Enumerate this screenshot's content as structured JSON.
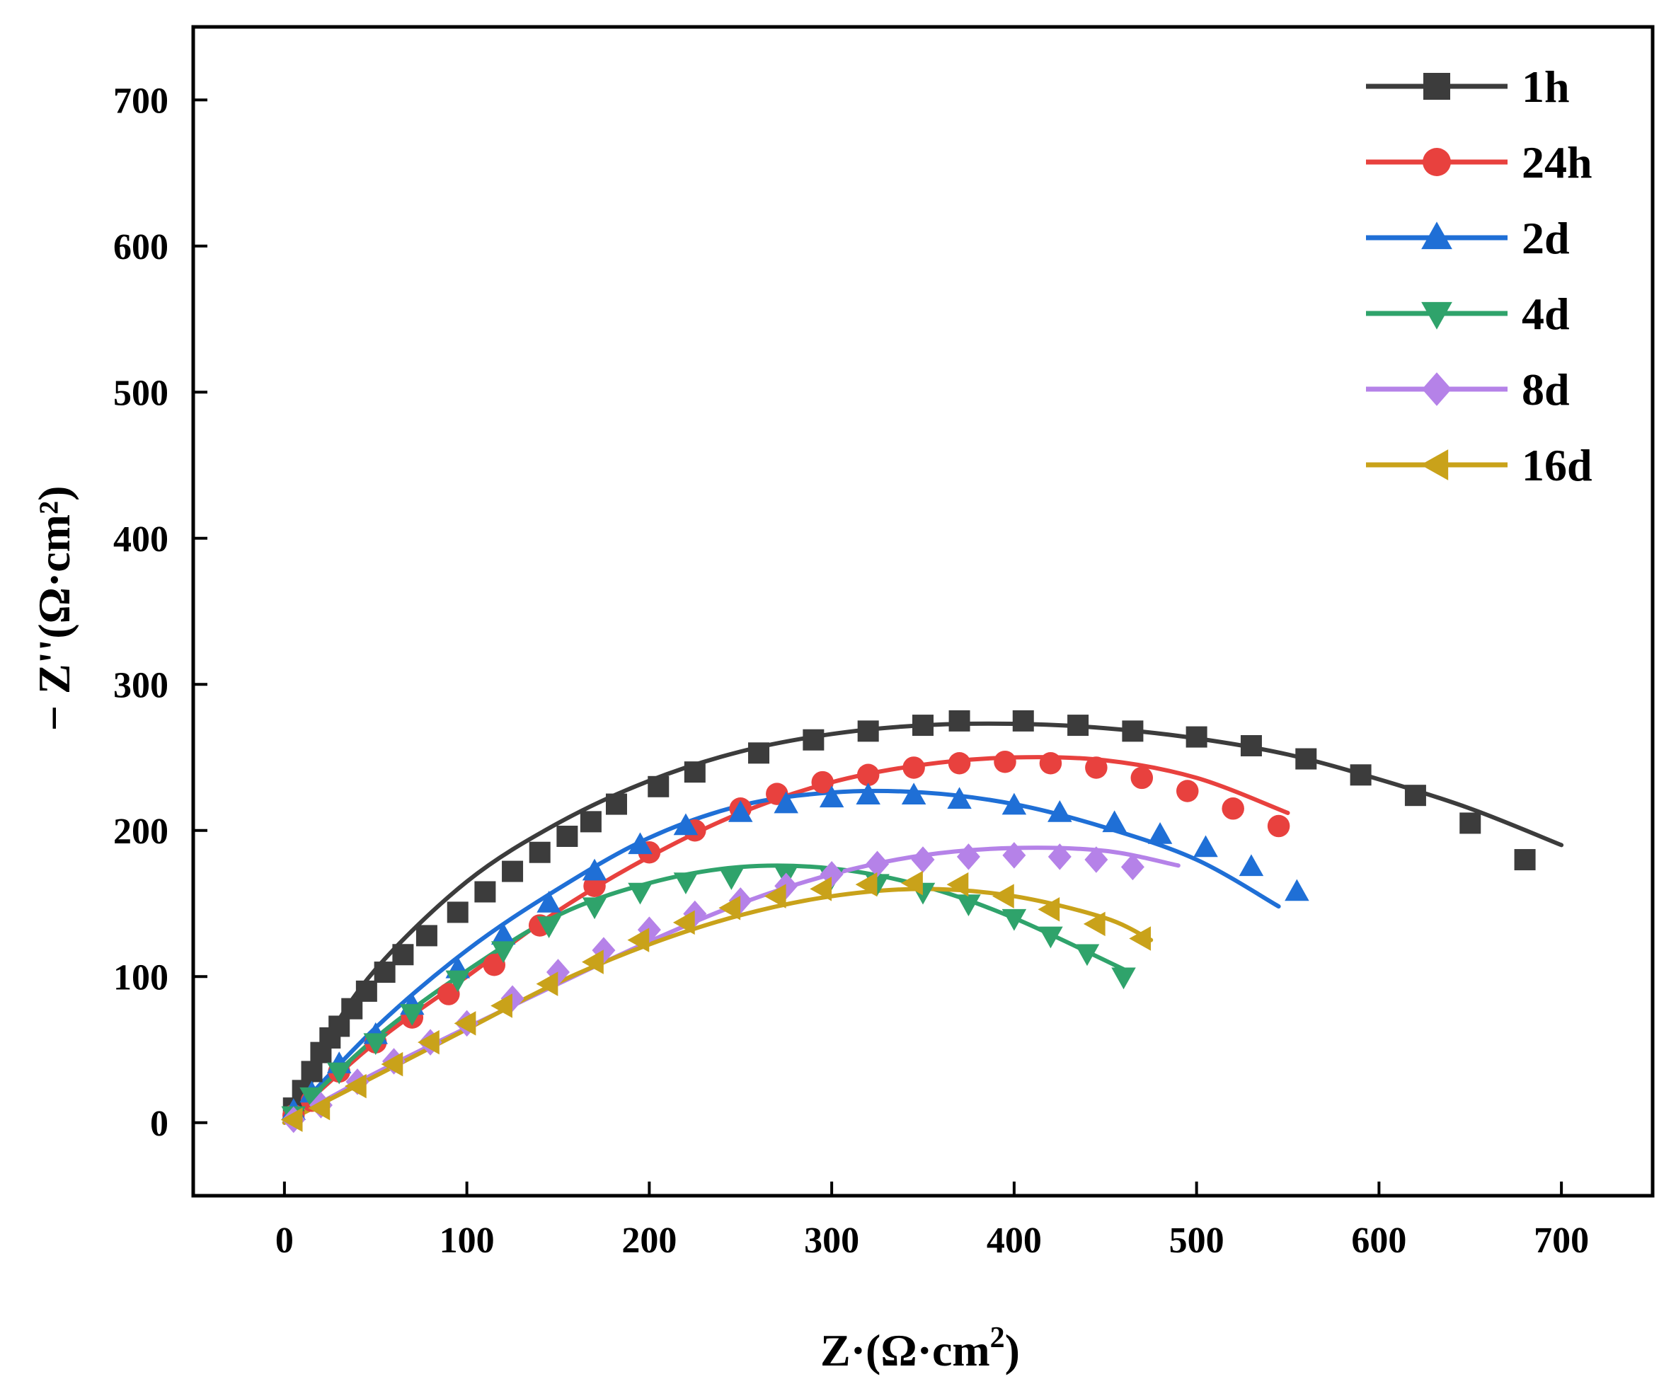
{
  "chart_data": {
    "type": "scatter",
    "title": "",
    "xlabel": "Z·(Ω·cm",
    "xlabel_sup": "2",
    "xlabel_close": ")",
    "ylabel": "− Z''(Ω·cm²)",
    "xlim": [
      -50,
      750
    ],
    "ylim": [
      -50,
      750
    ],
    "xticks": [
      0,
      100,
      200,
      300,
      400,
      500,
      600,
      700
    ],
    "yticks": [
      0,
      100,
      200,
      300,
      400,
      500,
      600,
      700
    ],
    "grid": false,
    "legend_position": "top-right",
    "series": [
      {
        "name": "1h",
        "color": "#3c3c3c",
        "marker": "square",
        "points": [
          [
            5,
            10
          ],
          [
            10,
            22
          ],
          [
            15,
            35
          ],
          [
            20,
            48
          ],
          [
            25,
            58
          ],
          [
            30,
            66
          ],
          [
            37,
            78
          ],
          [
            45,
            90
          ],
          [
            55,
            103
          ],
          [
            65,
            115
          ],
          [
            78,
            128
          ],
          [
            95,
            144
          ],
          [
            110,
            158
          ],
          [
            125,
            172
          ],
          [
            140,
            185
          ],
          [
            155,
            196
          ],
          [
            168,
            206
          ],
          [
            182,
            218
          ],
          [
            205,
            230
          ],
          [
            225,
            240
          ],
          [
            260,
            253
          ],
          [
            290,
            262
          ],
          [
            320,
            268
          ],
          [
            350,
            272
          ],
          [
            370,
            275
          ],
          [
            405,
            275
          ],
          [
            435,
            272
          ],
          [
            465,
            268
          ],
          [
            500,
            264
          ],
          [
            530,
            258
          ],
          [
            560,
            249
          ],
          [
            590,
            238
          ],
          [
            620,
            224
          ],
          [
            650,
            205
          ],
          [
            680,
            180
          ]
        ],
        "fit": [
          [
            0,
            0
          ],
          [
            20,
            50
          ],
          [
            50,
            105
          ],
          [
            100,
            165
          ],
          [
            150,
            205
          ],
          [
            200,
            234
          ],
          [
            250,
            254
          ],
          [
            300,
            266
          ],
          [
            350,
            272
          ],
          [
            400,
            273
          ],
          [
            450,
            270
          ],
          [
            500,
            263
          ],
          [
            550,
            252
          ],
          [
            600,
            235
          ],
          [
            650,
            215
          ],
          [
            700,
            190
          ]
        ]
      },
      {
        "name": "24h",
        "color": "#e8413e",
        "marker": "circle",
        "points": [
          [
            5,
            5
          ],
          [
            15,
            15
          ],
          [
            30,
            35
          ],
          [
            50,
            55
          ],
          [
            70,
            72
          ],
          [
            90,
            88
          ],
          [
            115,
            108
          ],
          [
            140,
            135
          ],
          [
            170,
            162
          ],
          [
            200,
            185
          ],
          [
            225,
            200
          ],
          [
            250,
            215
          ],
          [
            270,
            225
          ],
          [
            295,
            233
          ],
          [
            320,
            238
          ],
          [
            345,
            243
          ],
          [
            370,
            246
          ],
          [
            395,
            247
          ],
          [
            420,
            246
          ],
          [
            445,
            243
          ],
          [
            470,
            236
          ],
          [
            495,
            227
          ],
          [
            520,
            215
          ],
          [
            545,
            203
          ]
        ],
        "fit": [
          [
            0,
            0
          ],
          [
            50,
            55
          ],
          [
            100,
            100
          ],
          [
            150,
            145
          ],
          [
            200,
            182
          ],
          [
            250,
            212
          ],
          [
            300,
            233
          ],
          [
            350,
            245
          ],
          [
            400,
            250
          ],
          [
            450,
            248
          ],
          [
            500,
            236
          ],
          [
            550,
            212
          ]
        ]
      },
      {
        "name": "2d",
        "color": "#1f6fd6",
        "marker": "triangle-up",
        "points": [
          [
            5,
            8
          ],
          [
            15,
            20
          ],
          [
            30,
            40
          ],
          [
            50,
            60
          ],
          [
            70,
            80
          ],
          [
            95,
            105
          ],
          [
            120,
            128
          ],
          [
            145,
            150
          ],
          [
            170,
            172
          ],
          [
            195,
            190
          ],
          [
            220,
            203
          ],
          [
            250,
            212
          ],
          [
            275,
            218
          ],
          [
            300,
            222
          ],
          [
            320,
            224
          ],
          [
            345,
            224
          ],
          [
            370,
            221
          ],
          [
            400,
            217
          ],
          [
            425,
            212
          ],
          [
            455,
            205
          ],
          [
            480,
            197
          ],
          [
            505,
            188
          ],
          [
            530,
            175
          ],
          [
            555,
            158
          ]
        ],
        "fit": [
          [
            0,
            0
          ],
          [
            50,
            65
          ],
          [
            100,
            118
          ],
          [
            150,
            160
          ],
          [
            200,
            195
          ],
          [
            250,
            217
          ],
          [
            300,
            226
          ],
          [
            350,
            226
          ],
          [
            400,
            218
          ],
          [
            450,
            202
          ],
          [
            500,
            180
          ],
          [
            545,
            148
          ]
        ]
      },
      {
        "name": "4d",
        "color": "#2fa36b",
        "marker": "triangle-down",
        "points": [
          [
            5,
            5
          ],
          [
            15,
            18
          ],
          [
            30,
            35
          ],
          [
            50,
            55
          ],
          [
            70,
            75
          ],
          [
            95,
            98
          ],
          [
            120,
            118
          ],
          [
            145,
            135
          ],
          [
            170,
            148
          ],
          [
            195,
            158
          ],
          [
            220,
            165
          ],
          [
            245,
            168
          ],
          [
            275,
            170
          ],
          [
            300,
            168
          ],
          [
            325,
            164
          ],
          [
            350,
            158
          ],
          [
            375,
            150
          ],
          [
            400,
            140
          ],
          [
            420,
            128
          ],
          [
            440,
            116
          ],
          [
            460,
            100
          ]
        ],
        "fit": [
          [
            0,
            0
          ],
          [
            50,
            58
          ],
          [
            100,
            104
          ],
          [
            150,
            142
          ],
          [
            200,
            164
          ],
          [
            250,
            175
          ],
          [
            300,
            174
          ],
          [
            350,
            162
          ],
          [
            400,
            140
          ],
          [
            460,
            105
          ]
        ]
      },
      {
        "name": "8d",
        "color": "#b582e8",
        "marker": "diamond",
        "points": [
          [
            5,
            2
          ],
          [
            20,
            12
          ],
          [
            40,
            28
          ],
          [
            60,
            42
          ],
          [
            80,
            55
          ],
          [
            100,
            68
          ],
          [
            125,
            85
          ],
          [
            150,
            103
          ],
          [
            175,
            118
          ],
          [
            200,
            132
          ],
          [
            225,
            143
          ],
          [
            250,
            152
          ],
          [
            275,
            162
          ],
          [
            300,
            170
          ],
          [
            325,
            177
          ],
          [
            350,
            180
          ],
          [
            375,
            182
          ],
          [
            400,
            183
          ],
          [
            425,
            182
          ],
          [
            445,
            180
          ],
          [
            465,
            175
          ]
        ],
        "fit": [
          [
            0,
            0
          ],
          [
            50,
            34
          ],
          [
            100,
            65
          ],
          [
            150,
            95
          ],
          [
            200,
            124
          ],
          [
            250,
            150
          ],
          [
            300,
            170
          ],
          [
            350,
            183
          ],
          [
            400,
            188
          ],
          [
            450,
            186
          ],
          [
            490,
            176
          ]
        ]
      },
      {
        "name": "16d",
        "color": "#c9a21a",
        "marker": "triangle-left",
        "points": [
          [
            5,
            2
          ],
          [
            20,
            10
          ],
          [
            40,
            25
          ],
          [
            60,
            40
          ],
          [
            80,
            55
          ],
          [
            100,
            68
          ],
          [
            120,
            80
          ],
          [
            145,
            95
          ],
          [
            170,
            110
          ],
          [
            195,
            125
          ],
          [
            220,
            137
          ],
          [
            245,
            147
          ],
          [
            270,
            155
          ],
          [
            295,
            160
          ],
          [
            320,
            163
          ],
          [
            345,
            164
          ],
          [
            370,
            163
          ],
          [
            395,
            155
          ],
          [
            420,
            146
          ],
          [
            445,
            136
          ],
          [
            470,
            126
          ]
        ],
        "fit": [
          [
            0,
            0
          ],
          [
            50,
            32
          ],
          [
            100,
            64
          ],
          [
            150,
            96
          ],
          [
            200,
            122
          ],
          [
            250,
            142
          ],
          [
            300,
            155
          ],
          [
            350,
            160
          ],
          [
            400,
            155
          ],
          [
            450,
            140
          ],
          [
            475,
            125
          ]
        ]
      }
    ]
  }
}
